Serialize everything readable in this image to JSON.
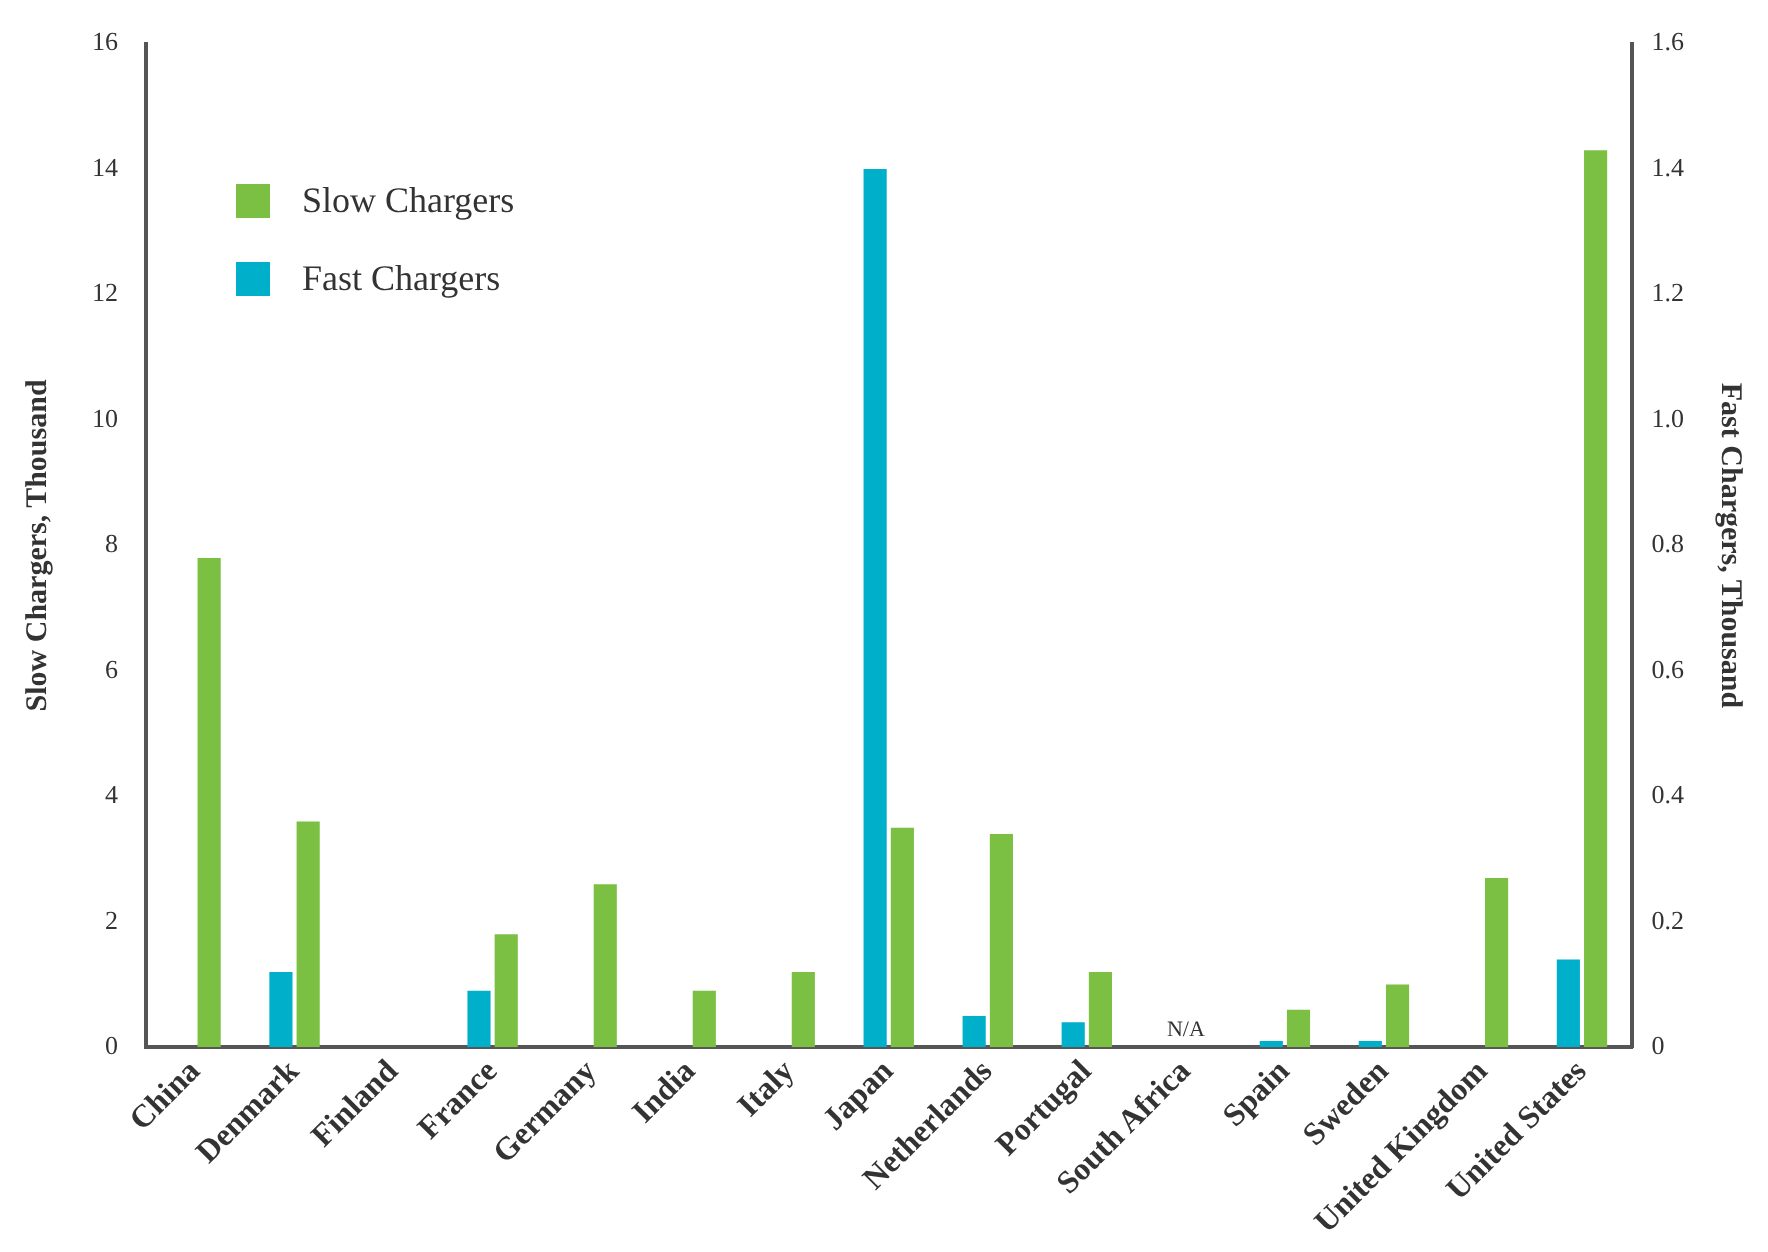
{
  "chart_data": {
    "type": "bar",
    "ylabel": "Slow Chargers, Thousand",
    "y2label": "Fast Chargers, Thousand",
    "categories": [
      "China",
      "Denmark",
      "Finland",
      "France",
      "Germany",
      "India",
      "Italy",
      "Japan",
      "Netherlands",
      "Portugal",
      "South Africa",
      "Spain",
      "Sweden",
      "United Kingdom",
      "United States"
    ],
    "series": [
      {
        "name": "Slow Chargers",
        "color": "#7bc043",
        "values": [
          7.8,
          3.6,
          0,
          1.8,
          2.6,
          0.9,
          1.2,
          3.5,
          3.4,
          1.2,
          null,
          0.6,
          1.0,
          2.7,
          14.3
        ]
      },
      {
        "name": "Fast Chargers",
        "color": "#00afc9",
        "axis": "y2",
        "values": [
          null,
          0.12,
          0,
          0.09,
          null,
          null,
          null,
          1.4,
          0.05,
          0.04,
          null,
          0.01,
          0.01,
          null,
          0.14
        ]
      }
    ],
    "ylim": [
      0,
      16
    ],
    "yticks": [
      0,
      2,
      4,
      6,
      8,
      10,
      12,
      14,
      16
    ],
    "y2lim": [
      0,
      1.6
    ],
    "y2ticks": [
      0,
      {
        "value": 0.2,
        "label": "0.2"
      },
      {
        "value": 0.4,
        "label": "0.4"
      },
      {
        "value": 0.6,
        "label": "0.6"
      },
      {
        "value": 0.8,
        "label": "0.8"
      },
      {
        "value": 1,
        "label": "1.0"
      },
      {
        "value": 1.2,
        "label": "1.2"
      },
      {
        "value": 1.4,
        "label": "1.4"
      },
      {
        "value": 1.6,
        "label": "1.6"
      }
    ],
    "annotations": [
      "N/A"
    ],
    "legend": "top left",
    "grid": false
  }
}
